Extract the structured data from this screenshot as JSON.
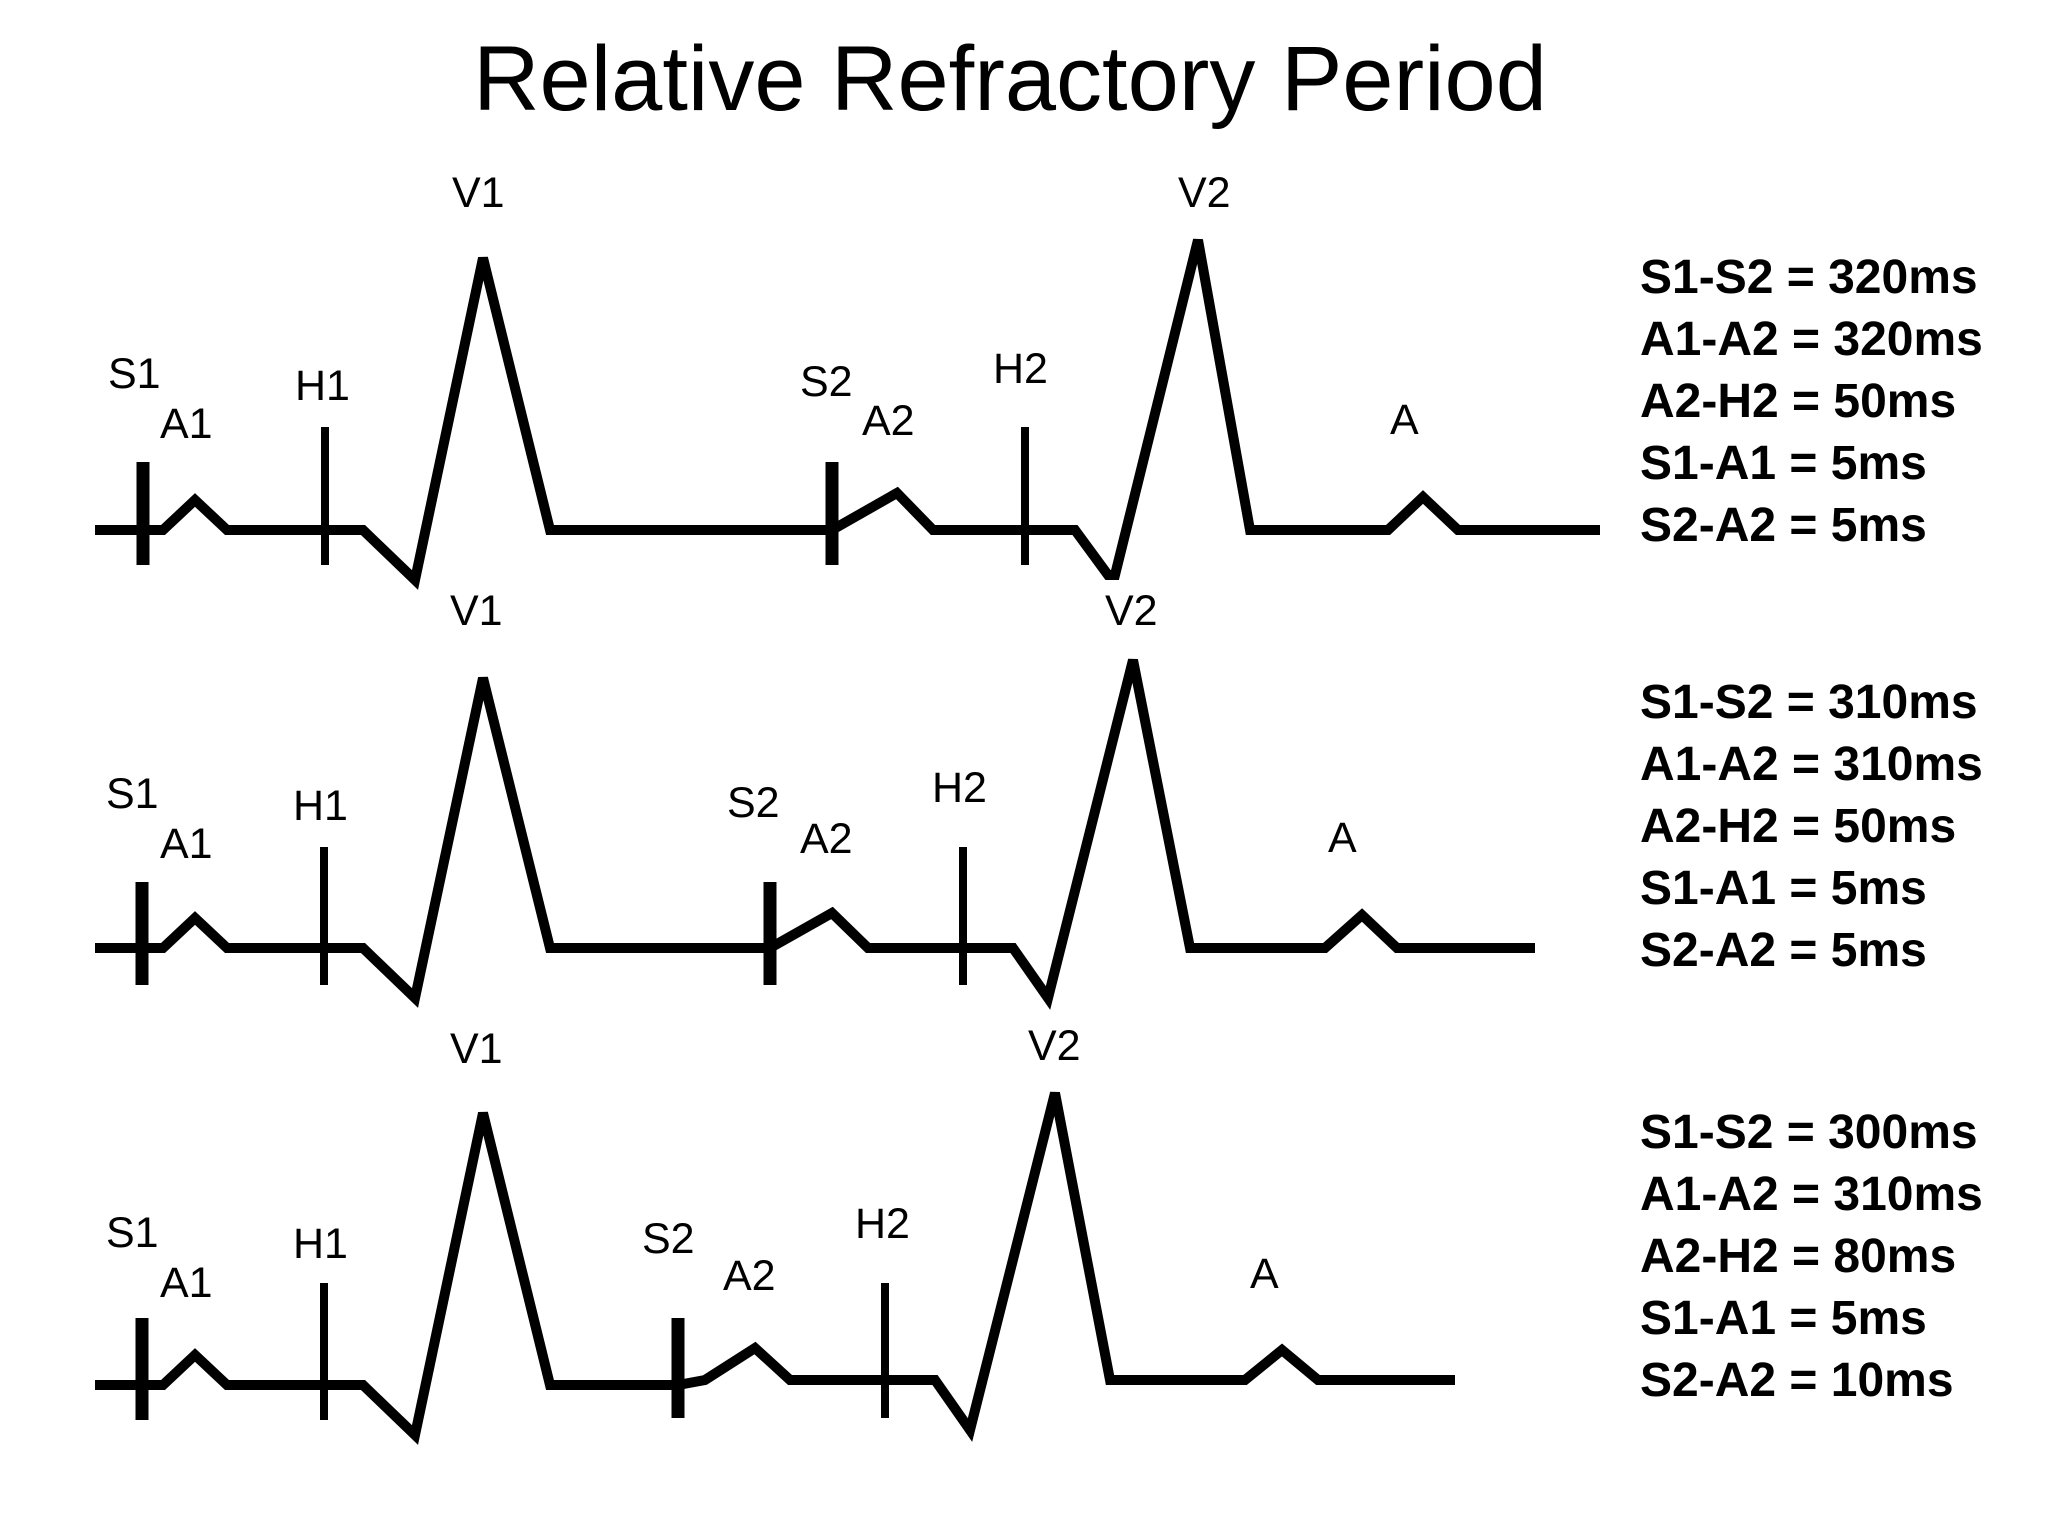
{
  "title": "Relative Refractory Period",
  "panels": [
    {
      "id": "panel-1",
      "labels": {
        "s1": "S1",
        "a1": "A1",
        "h1": "H1",
        "v1": "V1",
        "s2": "S2",
        "a2": "A2",
        "h2": "H2",
        "v2": "V2",
        "a": "A"
      },
      "measurements": [
        "S1-S2 = 320ms",
        "A1-A2 = 320ms",
        "A2-H2 = 50ms",
        "S1-A1 = 5ms",
        "S2-A2 = 5ms"
      ]
    },
    {
      "id": "panel-2",
      "labels": {
        "s1": "S1",
        "a1": "A1",
        "h1": "H1",
        "v1": "V1",
        "s2": "S2",
        "a2": "A2",
        "h2": "H2",
        "v2": "V2",
        "a": "A"
      },
      "measurements": [
        "S1-S2 = 310ms",
        "A1-A2 = 310ms",
        "A2-H2 = 50ms",
        "S1-A1 = 5ms",
        "S2-A2 = 5ms"
      ]
    },
    {
      "id": "panel-3",
      "labels": {
        "s1": "S1",
        "a1": "A1",
        "h1": "H1",
        "v1": "V1",
        "s2": "S2",
        "a2": "A2",
        "h2": "H2",
        "v2": "V2",
        "a": "A"
      },
      "measurements": [
        "S1-S2 = 300ms",
        "A1-A2 = 310ms",
        "A2-H2 = 80ms",
        "S1-A1 = 5ms",
        "S2-A2 = 10ms"
      ]
    }
  ]
}
